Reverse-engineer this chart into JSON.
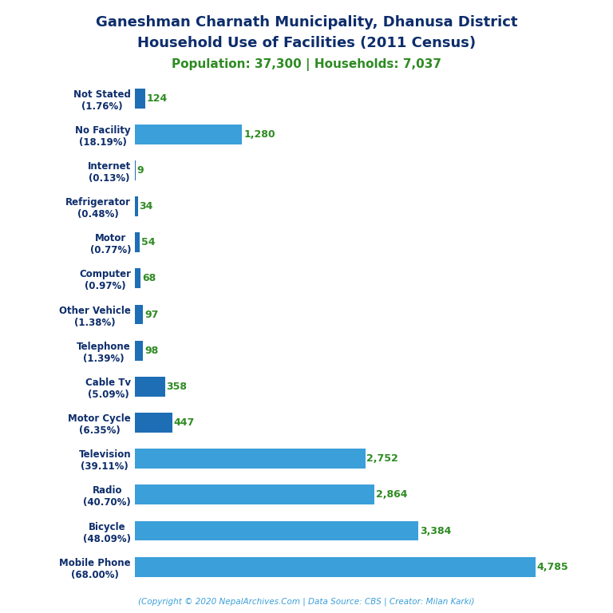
{
  "title_line1": "Ganeshman Charnath Municipality, Dhanusa District",
  "title_line2": "Household Use of Facilities (2011 Census)",
  "subtitle": "Population: 37,300 | Households: 7,037",
  "copyright": "(Copyright © 2020 NepalArchives.Com | Data Source: CBS | Creator: Milan Karki)",
  "categories": [
    "Mobile Phone\n(68.00%)",
    "Bicycle\n(48.09%)",
    "Radio\n(40.70%)",
    "Television\n(39.11%)",
    "Motor Cycle\n(6.35%)",
    "Cable Tv\n(5.09%)",
    "Telephone\n(1.39%)",
    "Other Vehicle\n(1.38%)",
    "Computer\n(0.97%)",
    "Motor\n(0.77%)",
    "Refrigerator\n(0.48%)",
    "Internet\n(0.13%)",
    "No Facility\n(18.19%)",
    "Not Stated\n(1.76%)"
  ],
  "values": [
    4785,
    3384,
    2864,
    2752,
    447,
    358,
    98,
    97,
    68,
    54,
    34,
    9,
    1280,
    124
  ],
  "bar_color_small": "#1e6eb5",
  "bar_color_large": "#3b9fd9",
  "title_color": "#0d2d6b",
  "subtitle_color": "#2e8b22",
  "value_color": "#2e8b22",
  "copyright_color": "#3b9fd9",
  "background_color": "#ffffff",
  "xlim_max": 5200,
  "bar_height": 0.55
}
